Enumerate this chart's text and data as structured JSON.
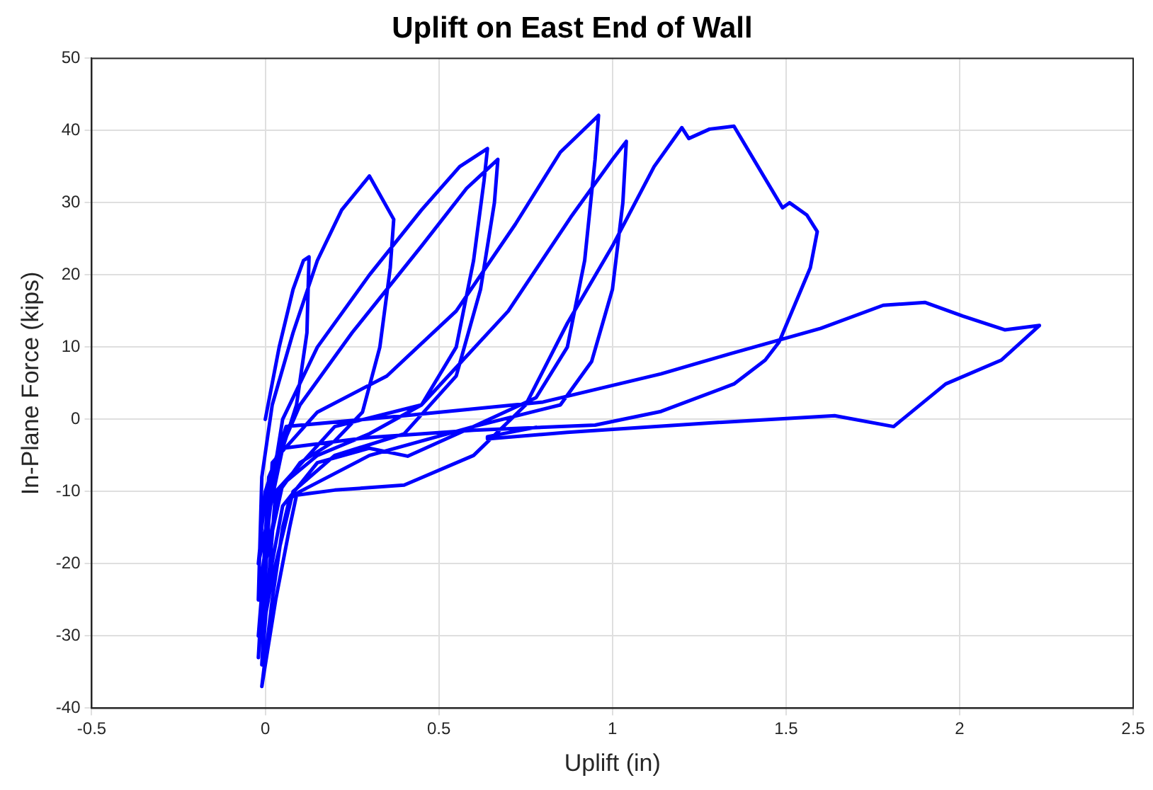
{
  "chart_data": {
    "type": "line",
    "title": "Uplift on East End of Wall",
    "xlabel": "Uplift (in)",
    "ylabel": "In-Plane Force (kips)",
    "xlim": [
      -0.5,
      2.5
    ],
    "xticks": [
      -0.5,
      0,
      0.5,
      1,
      1.5,
      2,
      2.5
    ],
    "ylim": [
      -40,
      50
    ],
    "yticks": [
      -40,
      -30,
      -20,
      -10,
      0,
      10,
      20,
      30,
      40,
      50
    ],
    "grid": true,
    "legend": false,
    "marker": "none",
    "line_style": "solid",
    "series": [
      {
        "color": "#0000ff",
        "x": [
          0,
          0.04,
          0.08,
          0.11,
          0.126,
          0.12,
          0.09,
          0.05,
          0.02,
          0,
          -0.02,
          -0.01,
          0.02,
          0.08,
          0.15,
          0.22,
          0.3,
          0.37,
          0.36,
          0.33,
          0.28,
          0.2,
          0.1,
          0.04,
          0,
          -0.02,
          0.01,
          0.05,
          0.15,
          0.3,
          0.45,
          0.56,
          0.64,
          0.63,
          0.6,
          0.55,
          0.45,
          0.3,
          0.15,
          0.05,
          0,
          -0.02,
          0.01,
          0.1,
          0.25,
          0.45,
          0.58,
          0.67,
          0.66,
          0.62,
          0.55,
          0.4,
          0.2,
          0.08,
          0.02,
          -0.01,
          0.02,
          0.15,
          0.35,
          0.55,
          0.72,
          0.85,
          0.96,
          0.95,
          0.92,
          0.87,
          0.78,
          0.6,
          0.41,
          0.3,
          0.15,
          0.05,
          0,
          -0.01,
          0.03,
          0.2,
          0.45,
          0.7,
          0.88,
          1.0,
          1.04,
          1.03,
          1.0,
          0.94,
          0.85,
          0.6,
          0.3,
          0.1,
          0.07,
          0.05,
          0.02,
          -0.01,
          0.03,
          0.07,
          0.09,
          0.2,
          0.4,
          0.6,
          0.75,
          0.87,
          1.0,
          1.12,
          1.2,
          1.22,
          1.28,
          1.35,
          1.49,
          1.51,
          1.56,
          1.59,
          1.57,
          1.48,
          1.44,
          1.35,
          1.14,
          0.95,
          0.6,
          0.3,
          0.05,
          -0.02,
          0,
          0.06,
          0.4,
          0.8,
          1.14,
          1.34,
          1.6,
          1.78,
          1.9,
          2.01,
          2.13,
          2.23,
          2.12,
          1.96,
          1.81,
          1.64,
          1.28,
          0.87,
          0.64,
          0.64,
          0.78
        ],
        "values": [
          0,
          10,
          18,
          22,
          22.5,
          12,
          2,
          -4,
          -10,
          -18,
          -25,
          -8,
          2,
          12,
          22,
          29,
          33.7,
          27.7,
          21,
          10,
          1,
          -3,
          -6,
          -10,
          -20,
          -30,
          -12,
          0,
          10,
          20,
          29,
          35,
          37.5,
          33,
          22,
          10,
          2,
          -2,
          -5,
          -9,
          -20,
          -33,
          -8,
          2,
          12,
          24,
          32,
          36,
          30,
          18,
          6,
          -2,
          -5,
          -10,
          -22,
          -30,
          -6,
          1,
          6,
          15,
          27,
          37,
          42.1,
          36,
          22,
          10,
          3,
          -1,
          -5.1,
          -4,
          -6,
          -12,
          -25,
          -34,
          -10,
          -1,
          2,
          15,
          28,
          36,
          38.5,
          30,
          18,
          8,
          2,
          -1,
          -5,
          -10,
          -11,
          -15,
          -25,
          -37,
          -25,
          -15,
          -10.5,
          -9.8,
          -9.1,
          -5,
          2,
          13.3,
          24,
          35,
          40.4,
          38.9,
          40.2,
          40.6,
          29.3,
          30,
          28.3,
          26,
          21,
          10.7,
          8.2,
          4.9,
          1.1,
          -0.8,
          -1.5,
          -2.5,
          -4,
          -20,
          -10,
          -1,
          0.5,
          2.4,
          6.3,
          9.1,
          12.6,
          15.8,
          16.2,
          14.3,
          12.4,
          13,
          8.2,
          4.9,
          -1,
          0.5,
          -0.5,
          -1.8,
          -2.7,
          -2.4,
          -1.1
        ]
      }
    ]
  }
}
